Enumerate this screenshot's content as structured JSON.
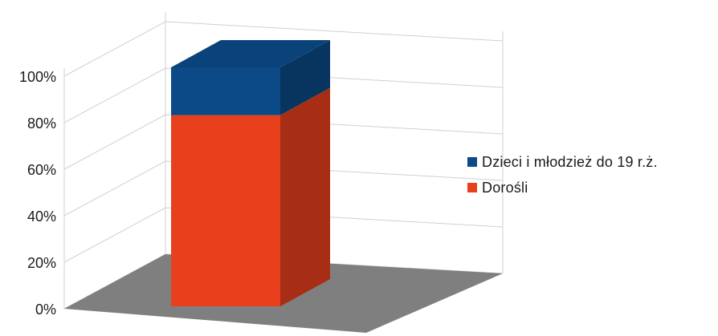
{
  "chart_data": {
    "type": "bar",
    "stacked": true,
    "three_d": true,
    "categories": [
      ""
    ],
    "ylim": [
      0,
      100
    ],
    "yticks": [
      "0%",
      "20%",
      "40%",
      "60%",
      "80%",
      "100%"
    ],
    "grid": true,
    "legend_position": "right",
    "series": [
      {
        "name": "Dorośli",
        "values": [
          80
        ],
        "color": "#e8401c"
      },
      {
        "name": "Dzieci i młodzież do 19 r.ż.",
        "values": [
          20
        ],
        "color": "#0b4a86"
      }
    ],
    "colors": {
      "floor": "#7f7f7f",
      "gridline": "#d0d0d0",
      "axis_text": "#1a1a1a"
    }
  }
}
